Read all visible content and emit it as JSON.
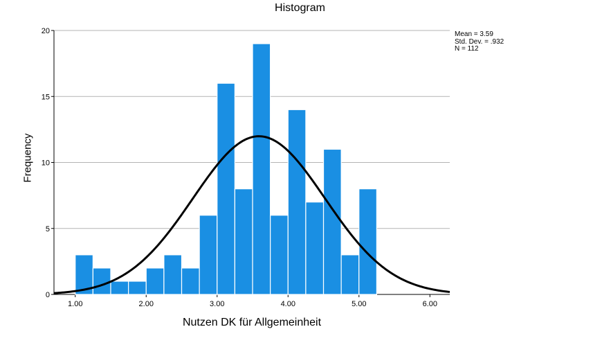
{
  "chart_data": {
    "type": "bar",
    "title": "Histogram",
    "xlabel": "Nutzen DK für Allgemeinheit",
    "ylabel": "Frequency",
    "xlim": [
      0.7,
      6.28
    ],
    "ylim": [
      0,
      20
    ],
    "x_ticks": [
      1.0,
      2.0,
      3.0,
      4.0,
      5.0,
      6.0
    ],
    "x_tick_labels": [
      "1.00",
      "2.00",
      "3.00",
      "4.00",
      "5.00",
      "6.00"
    ],
    "y_ticks": [
      0,
      5,
      10,
      15,
      20
    ],
    "y_tick_labels": [
      "0",
      "5",
      "10",
      "15",
      "20"
    ],
    "bin_width": 0.25,
    "bins": [
      {
        "start": 1.0,
        "end": 1.25,
        "count": 3
      },
      {
        "start": 1.25,
        "end": 1.5,
        "count": 2
      },
      {
        "start": 1.5,
        "end": 1.75,
        "count": 1
      },
      {
        "start": 1.75,
        "end": 2.0,
        "count": 1
      },
      {
        "start": 2.0,
        "end": 2.25,
        "count": 2
      },
      {
        "start": 2.25,
        "end": 2.5,
        "count": 3
      },
      {
        "start": 2.5,
        "end": 2.75,
        "count": 2
      },
      {
        "start": 2.75,
        "end": 3.0,
        "count": 6
      },
      {
        "start": 3.0,
        "end": 3.25,
        "count": 16
      },
      {
        "start": 3.25,
        "end": 3.5,
        "count": 8
      },
      {
        "start": 3.5,
        "end": 3.75,
        "count": 19
      },
      {
        "start": 3.75,
        "end": 4.0,
        "count": 6
      },
      {
        "start": 4.0,
        "end": 4.25,
        "count": 14
      },
      {
        "start": 4.25,
        "end": 4.5,
        "count": 7
      },
      {
        "start": 4.5,
        "end": 4.75,
        "count": 11
      },
      {
        "start": 4.75,
        "end": 5.0,
        "count": 3
      },
      {
        "start": 5.0,
        "end": 5.25,
        "count": 8
      }
    ],
    "normal_curve": {
      "mean": 3.59,
      "sd": 0.932,
      "n": 112
    },
    "grid": "horizontal",
    "colors": {
      "bar": "#1a8fe3",
      "bar_edge": "#ffffff",
      "curve": "#000000",
      "grid": "#b3b3b3"
    }
  },
  "stats": {
    "mean_label": "Mean = 3.59",
    "sd_label": "Std. Dev. = .932",
    "n_label": "N = 112"
  }
}
